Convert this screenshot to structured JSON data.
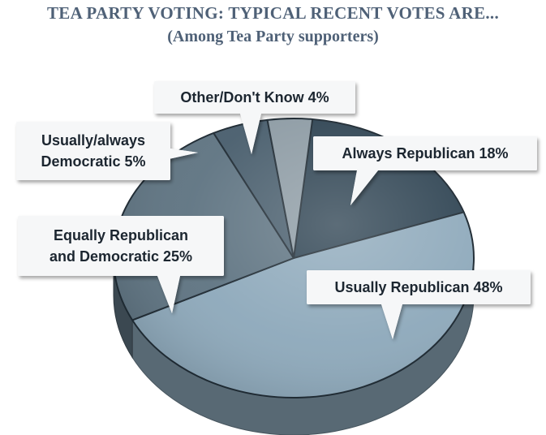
{
  "chart_data": {
    "type": "pie",
    "title": "TEA PARTY VOTING: TYPICAL RECENT VOTES ARE...",
    "subtitle": "(Among Tea Party supporters)",
    "unit": "%",
    "slices": [
      {
        "label_lines": [
          "Always Republican 18%"
        ],
        "value": 18,
        "color": "#2e4352"
      },
      {
        "label_lines": [
          "Usually Republican 48%"
        ],
        "value": 48,
        "color": "#8ea9bb"
      },
      {
        "label_lines": [
          "Equally Republican",
          "and Democratic 25%"
        ],
        "value": 25,
        "color": "#5f7482"
      },
      {
        "label_lines": [
          "Usually/always",
          "Democratic  5%"
        ],
        "value": 5,
        "color": "#495e6d"
      },
      {
        "label_lines": [
          "Other/Don't Know 4%"
        ],
        "value": 4,
        "color": "#8d9ba4"
      }
    ]
  }
}
